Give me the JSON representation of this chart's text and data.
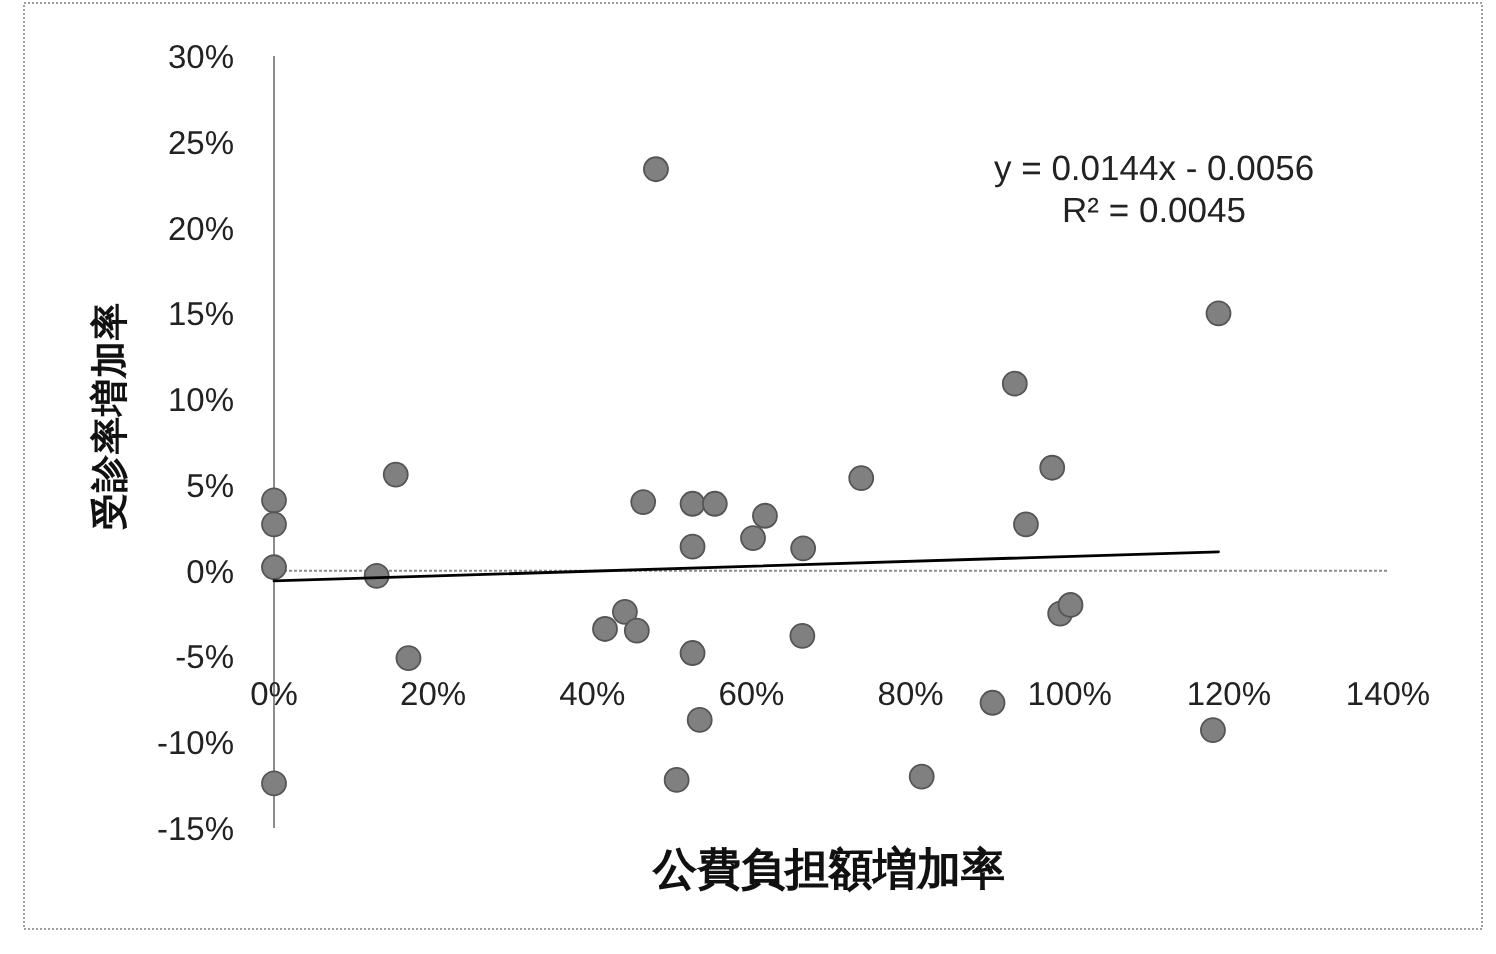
{
  "chart_data": {
    "type": "scatter",
    "xlabel": "公費負担額増加率",
    "ylabel": "受診率増加率",
    "xlim": [
      0,
      140
    ],
    "ylim": [
      -15,
      30
    ],
    "xticks": [
      {
        "value": 0,
        "label": "0%"
      },
      {
        "value": 20,
        "label": "20%"
      },
      {
        "value": 40,
        "label": "40%"
      },
      {
        "value": 60,
        "label": "60%"
      },
      {
        "value": 80,
        "label": "80%"
      },
      {
        "value": 100,
        "label": "100%"
      },
      {
        "value": 120,
        "label": "120%"
      },
      {
        "value": 140,
        "label": "140%"
      }
    ],
    "yticks": [
      {
        "value": -15,
        "label": "-15%"
      },
      {
        "value": -10,
        "label": "-10%"
      },
      {
        "value": -5,
        "label": "-5%"
      },
      {
        "value": 0,
        "label": "0%"
      },
      {
        "value": 5,
        "label": "5%"
      },
      {
        "value": 10,
        "label": "10%"
      },
      {
        "value": 15,
        "label": "15%"
      },
      {
        "value": 20,
        "label": "20%"
      },
      {
        "value": 25,
        "label": "25%"
      },
      {
        "value": 30,
        "label": "30%"
      }
    ],
    "marker": "circle",
    "annotations": [
      "y = 0.0144x - 0.0056",
      "R² = 0.0045"
    ],
    "series": [
      {
        "color": "#808080",
        "x": [
          0,
          0,
          0,
          0,
          15.3,
          12.9,
          16.9,
          46.4,
          52.6,
          55.4,
          52.6,
          60.2,
          61.7,
          66.5,
          41.6,
          44.1,
          45.6,
          66.4,
          52.6,
          53.5,
          50.6,
          48.0,
          73.8,
          93.1,
          97.8,
          94.5,
          98.8,
          100.1,
          90.3,
          81.4,
          118.0,
          118.7
        ],
        "values": [
          4.1,
          2.7,
          0.2,
          -12.4,
          5.6,
          -0.3,
          -5.1,
          4.0,
          3.9,
          3.9,
          1.4,
          1.9,
          3.2,
          1.3,
          -3.4,
          -2.4,
          -3.5,
          -3.8,
          -4.8,
          -8.7,
          -12.2,
          23.4,
          5.4,
          10.9,
          6.0,
          2.7,
          -2.5,
          -2.0,
          -7.7,
          -12.0,
          -9.3,
          15.0
        ]
      },
      {
        "type": "line",
        "color": "#000000",
        "line_style": "solid",
        "marker": "none",
        "x": [
          0,
          118.7
        ],
        "values": [
          -0.6,
          1.1
        ]
      }
    ]
  }
}
